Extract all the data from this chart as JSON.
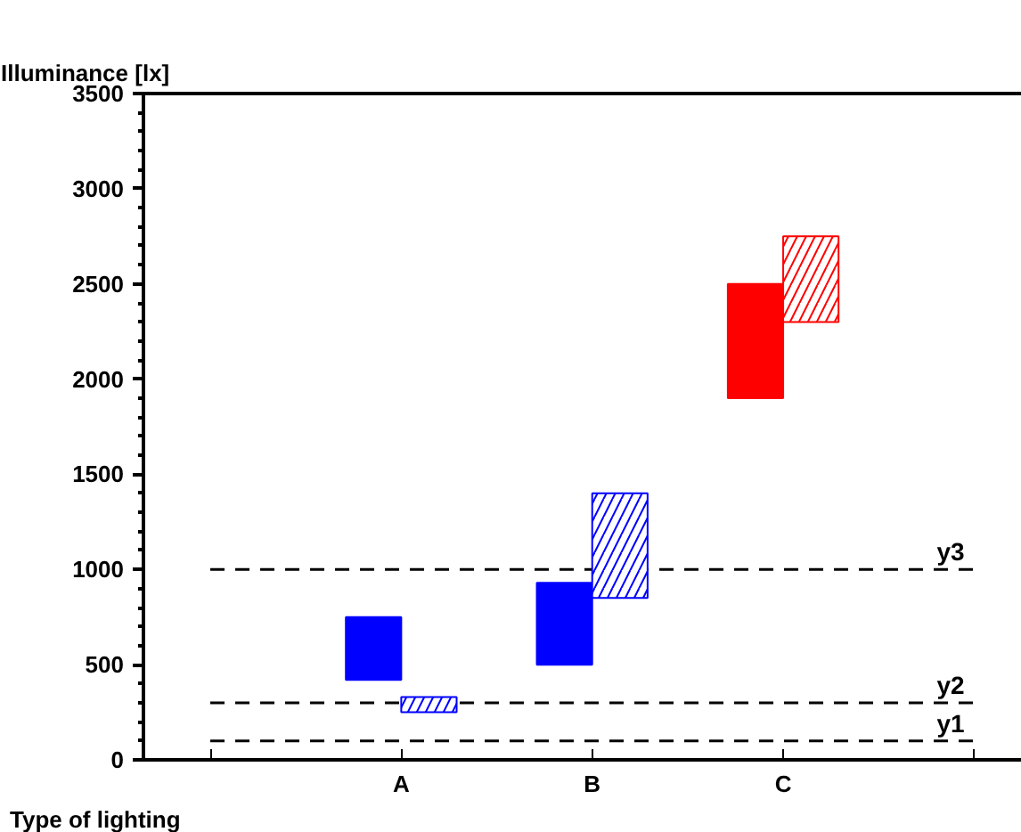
{
  "chart_data": {
    "type": "bar",
    "xlabel": "Type of lighting",
    "ylabel": "Illuminance [lx]",
    "categories": [
      "A",
      "B",
      "C"
    ],
    "series": [
      {
        "colors": [
          "#0000ff",
          "#0000ff",
          "#ff0000"
        ],
        "base": [
          420,
          500,
          1900
        ],
        "values": [
          330,
          430,
          600
        ]
      },
      {
        "colors": [
          "#0000ff",
          "#0000ff",
          "#ff0000"
        ],
        "base": [
          250,
          850,
          2300
        ],
        "values": [
          80,
          550,
          450
        ]
      }
    ],
    "ylim": [
      0,
      3500
    ],
    "yticks": [
      0,
      500,
      1000,
      1500,
      2000,
      2500,
      3000,
      3500
    ],
    "grid": false,
    "ref_lines": [
      {
        "axis": "y",
        "value": 100,
        "label": "y1",
        "color": "#000000",
        "line_style": "dashed"
      },
      {
        "axis": "y",
        "value": 300,
        "label": "y2",
        "color": "#000000",
        "line_style": "dashed"
      },
      {
        "axis": "y",
        "value": 1000,
        "label": "y3",
        "color": "#000000",
        "line_style": "dashed"
      }
    ]
  }
}
